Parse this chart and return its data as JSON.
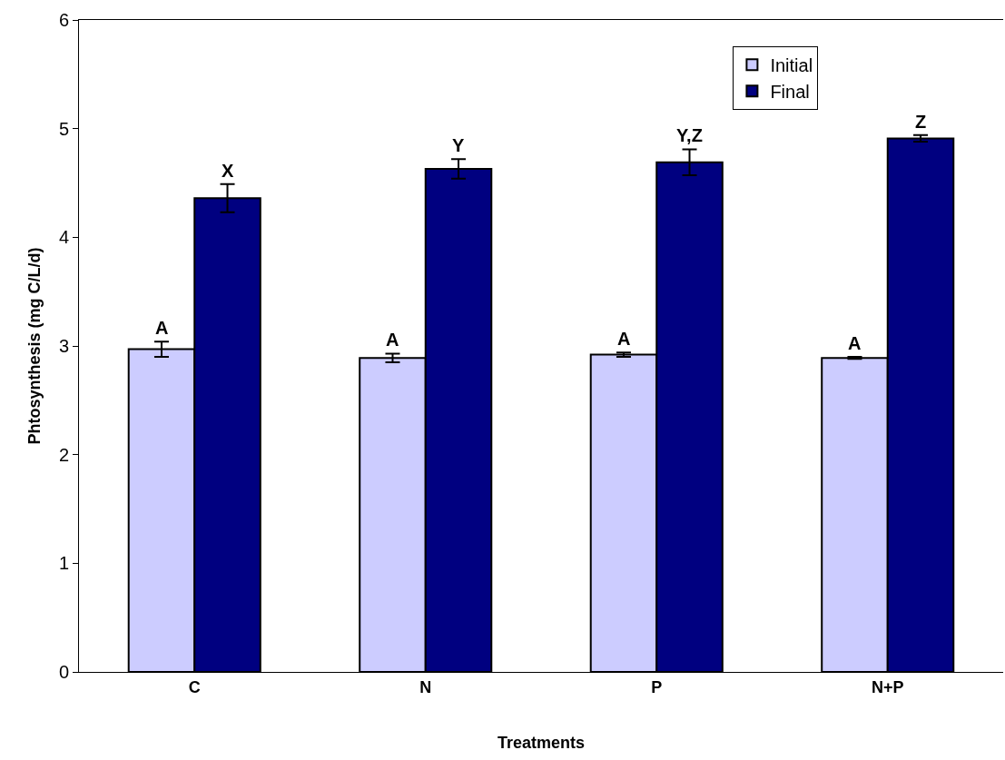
{
  "chart_data": {
    "type": "bar",
    "xlabel": "Treatments",
    "ylabel": "Phtosynthesis (mg C/L/d)",
    "categories": [
      "C",
      "N",
      "P",
      "N+P"
    ],
    "series": [
      {
        "name": "Initial",
        "color": "#ccccff",
        "values": [
          2.97,
          2.89,
          2.92,
          2.89
        ],
        "errors": [
          0.07,
          0.04,
          0.02,
          0.01
        ],
        "value_labels": [
          "A",
          "A",
          "A",
          "A"
        ]
      },
      {
        "name": "Final",
        "color": "#000080",
        "values": [
          4.36,
          4.63,
          4.69,
          4.91
        ],
        "errors": [
          0.13,
          0.09,
          0.12,
          0.03
        ],
        "value_labels": [
          "X",
          "Y",
          "Y,Z",
          "Z"
        ]
      }
    ],
    "ylim": [
      0,
      6
    ],
    "yticks": [
      0,
      1,
      2,
      3,
      4,
      5,
      6
    ],
    "grid": false,
    "legend": "top right"
  }
}
